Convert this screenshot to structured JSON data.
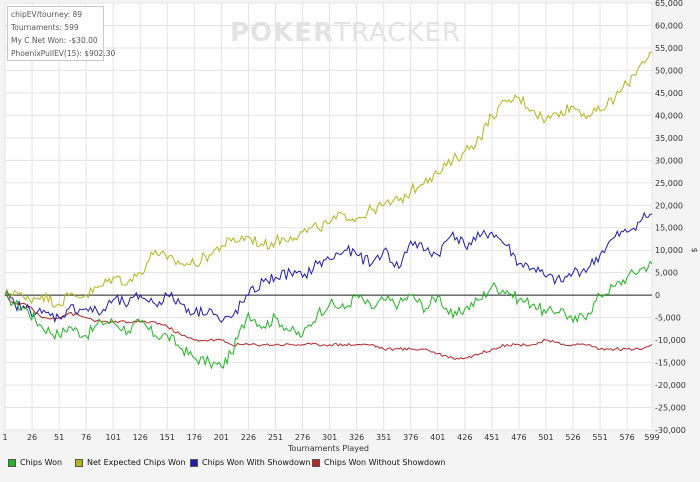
{
  "stats": {
    "line1": "chipEV/tourney: 89",
    "line2": "Tournaments: 599",
    "line3": "My C Net Won: -$30.00",
    "line4": "PhoenixPullEV(15): $902.30"
  },
  "watermark": {
    "part1": "POKER",
    "part2": "TRACKER"
  },
  "colors": {
    "chips_won": "#22b422",
    "net_expected": "#b4b41e",
    "with_showdown": "#1e1eaa",
    "without_showdown": "#b42828"
  },
  "chart_data": {
    "type": "line",
    "xlabel": "Tournaments Played",
    "ylabel": "$",
    "xlim": [
      1,
      599
    ],
    "ylim": [
      -30000,
      65000
    ],
    "x_ticks": [
      1,
      26,
      51,
      76,
      101,
      126,
      151,
      176,
      201,
      226,
      251,
      276,
      301,
      326,
      351,
      376,
      401,
      426,
      451,
      476,
      501,
      526,
      551,
      576,
      599
    ],
    "y_ticks": [
      65000,
      60000,
      55000,
      50000,
      45000,
      40000,
      35000,
      30000,
      25000,
      20000,
      15000,
      10000,
      5000,
      0,
      -5000,
      -10000,
      -15000,
      -20000,
      -25000,
      -30000
    ],
    "y_tick_labels": [
      "65,000",
      "60,000",
      "55,000",
      "50,000",
      "45,000",
      "40,000",
      "35,000",
      "30,000",
      "25,000",
      "20,000",
      "15,000",
      "10,000",
      "5,000",
      "0",
      "-5,000",
      "-10,000",
      "-15,000",
      "-20,000",
      "-25,000",
      "-30,000"
    ],
    "legend_position": "bottom",
    "series": [
      {
        "name": "Chips Won",
        "x": [
          1,
          10,
          20,
          35,
          51,
          60,
          76,
          90,
          101,
          115,
          126,
          140,
          151,
          165,
          176,
          190,
          201,
          210,
          226,
          240,
          251,
          265,
          276,
          290,
          301,
          315,
          326,
          340,
          351,
          365,
          376,
          390,
          401,
          415,
          426,
          440,
          451,
          465,
          476,
          490,
          501,
          515,
          526,
          540,
          551,
          565,
          576,
          590,
          599
        ],
        "y": [
          0,
          -2000,
          -3000,
          -7000,
          -9000,
          -7000,
          -9000,
          -6000,
          -6000,
          -8000,
          -6000,
          -9000,
          -9000,
          -12000,
          -14000,
          -15000,
          -16000,
          -13000,
          -4000,
          -7000,
          -5000,
          -8000,
          -9000,
          -4000,
          -2000,
          -3000,
          0,
          -3000,
          -1000,
          -2000,
          0,
          -3000,
          0,
          -5000,
          -3000,
          -1000,
          2000,
          1000,
          -1000,
          -2000,
          -4000,
          -3000,
          -6000,
          -4000,
          0,
          2000,
          4000,
          6000,
          7000
        ]
      },
      {
        "name": "Net Expected Chips Won",
        "x": [
          1,
          10,
          20,
          35,
          51,
          60,
          76,
          90,
          101,
          115,
          126,
          140,
          151,
          165,
          176,
          190,
          201,
          210,
          226,
          240,
          251,
          265,
          276,
          290,
          301,
          315,
          326,
          340,
          351,
          365,
          376,
          390,
          401,
          415,
          426,
          440,
          451,
          465,
          476,
          490,
          501,
          515,
          526,
          540,
          551,
          565,
          576,
          590,
          599
        ],
        "y": [
          0,
          1000,
          -1000,
          0,
          -2000,
          0,
          0,
          2000,
          4000,
          3000,
          5000,
          10000,
          8000,
          7000,
          7000,
          9000,
          11000,
          12000,
          13000,
          11000,
          12000,
          13000,
          14000,
          15000,
          16000,
          18000,
          17000,
          19000,
          20000,
          21000,
          23000,
          26000,
          27000,
          30000,
          32000,
          35000,
          40000,
          43000,
          44000,
          41000,
          39000,
          41000,
          42000,
          40000,
          41000,
          44000,
          47000,
          52000,
          54000
        ]
      },
      {
        "name": "Chips Won With Showdown",
        "x": [
          1,
          10,
          20,
          35,
          51,
          60,
          76,
          90,
          101,
          115,
          126,
          140,
          151,
          165,
          176,
          190,
          201,
          210,
          226,
          240,
          251,
          265,
          276,
          290,
          301,
          315,
          326,
          340,
          351,
          365,
          376,
          390,
          401,
          415,
          426,
          440,
          451,
          465,
          476,
          490,
          501,
          515,
          526,
          540,
          551,
          565,
          576,
          590,
          599
        ],
        "y": [
          0,
          -2000,
          -3000,
          -4000,
          -5000,
          -3000,
          -3000,
          -4000,
          -1000,
          -2000,
          0,
          -2000,
          0,
          -2000,
          -4000,
          -3000,
          -6000,
          -5000,
          0,
          3000,
          4000,
          5000,
          4000,
          7000,
          8000,
          10000,
          9000,
          7000,
          10000,
          6000,
          12000,
          10000,
          9000,
          14000,
          11000,
          13000,
          14000,
          11000,
          7000,
          6000,
          4000,
          3000,
          5000,
          6000,
          9000,
          13000,
          14000,
          17000,
          18000
        ]
      },
      {
        "name": "Chips Won Without Showdown",
        "x": [
          1,
          10,
          20,
          35,
          51,
          60,
          76,
          90,
          101,
          115,
          126,
          140,
          151,
          165,
          176,
          190,
          201,
          210,
          226,
          240,
          251,
          265,
          276,
          290,
          301,
          315,
          326,
          340,
          351,
          365,
          376,
          390,
          401,
          415,
          426,
          440,
          451,
          465,
          476,
          490,
          501,
          515,
          526,
          540,
          551,
          565,
          576,
          590,
          599
        ],
        "y": [
          0,
          -2000,
          -2000,
          -5000,
          -5000,
          -4000,
          -5000,
          -6000,
          -6000,
          -6000,
          -6000,
          -6000,
          -7000,
          -9000,
          -10000,
          -10000,
          -10000,
          -11000,
          -11000,
          -11000,
          -11000,
          -11000,
          -11000,
          -11000,
          -11000,
          -11000,
          -11000,
          -11000,
          -12000,
          -12000,
          -12000,
          -12000,
          -13000,
          -14000,
          -14000,
          -13000,
          -12000,
          -11000,
          -11000,
          -11000,
          -10000,
          -11000,
          -11000,
          -11000,
          -12000,
          -12000,
          -12000,
          -12000,
          -11000
        ]
      }
    ]
  }
}
